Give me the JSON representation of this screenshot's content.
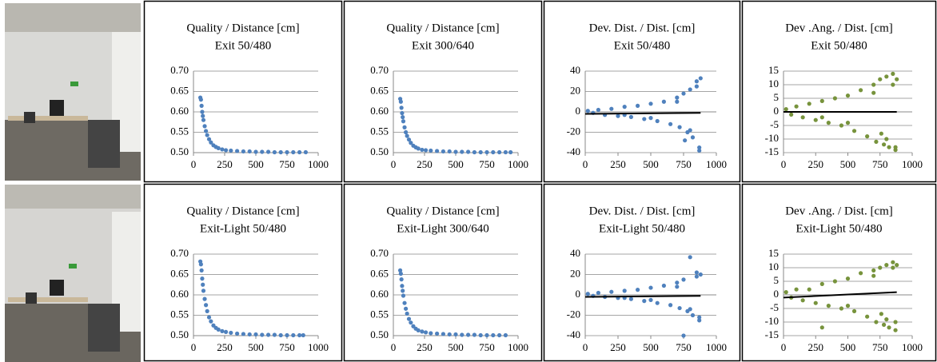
{
  "chart_data": [
    {
      "type": "scatter",
      "title": "Quality / Distance [cm]",
      "subtitle": "Exit 50/480",
      "xlim": [
        0,
        1000
      ],
      "xticks": [
        0,
        250,
        500,
        750,
        1000
      ],
      "ylim": [
        0.5,
        0.7
      ],
      "yticks": [
        {
          "value": 0.5,
          "label": "0.50"
        },
        0.55,
        {
          "value": 0.6,
          "label": "0.60"
        },
        0.65,
        {
          "value": 0.7,
          "label": "0.70"
        }
      ],
      "grid": true,
      "series": [
        {
          "color": "#4f81bd",
          "x": [
            55,
            60,
            65,
            70,
            75,
            80,
            90,
            100,
            110,
            125,
            140,
            160,
            180,
            200,
            230,
            260,
            300,
            350,
            400,
            450,
            500,
            550,
            600,
            650,
            700,
            750,
            800,
            850,
            900
          ],
          "values": [
            0.635,
            0.63,
            0.615,
            0.6,
            0.59,
            0.58,
            0.565,
            0.553,
            0.543,
            0.533,
            0.525,
            0.518,
            0.514,
            0.511,
            0.508,
            0.506,
            0.505,
            0.504,
            0.503,
            0.503,
            0.502,
            0.502,
            0.502,
            0.501,
            0.501,
            0.501,
            0.501,
            0.501,
            0.501
          ]
        }
      ]
    },
    {
      "type": "scatter",
      "title": "Quality / Distance [cm]",
      "subtitle": "Exit 300/640",
      "xlim": [
        0,
        1000
      ],
      "xticks": [
        0,
        250,
        500,
        750,
        1000
      ],
      "ylim": [
        0.5,
        0.7
      ],
      "yticks": [
        {
          "value": 0.5,
          "label": "0.50"
        },
        0.55,
        {
          "value": 0.6,
          "label": "0.60"
        },
        0.65,
        {
          "value": 0.7,
          "label": "0.70"
        }
      ],
      "grid": true,
      "series": [
        {
          "color": "#4f81bd",
          "x": [
            55,
            60,
            65,
            70,
            75,
            80,
            90,
            100,
            110,
            125,
            140,
            160,
            180,
            200,
            230,
            260,
            300,
            350,
            400,
            450,
            500,
            550,
            600,
            650,
            700,
            750,
            800,
            850,
            900,
            940
          ],
          "values": [
            0.632,
            0.625,
            0.61,
            0.597,
            0.587,
            0.577,
            0.562,
            0.55,
            0.541,
            0.532,
            0.524,
            0.517,
            0.513,
            0.51,
            0.507,
            0.506,
            0.505,
            0.504,
            0.503,
            0.503,
            0.502,
            0.502,
            0.502,
            0.501,
            0.501,
            0.501,
            0.501,
            0.501,
            0.501,
            0.501
          ]
        }
      ]
    },
    {
      "type": "scatter",
      "title": "Dev. Dist. / Dist. [cm]",
      "subtitle": "Exit 50/480",
      "xlim": [
        0,
        1000
      ],
      "xticks": [
        0,
        250,
        500,
        750,
        1000
      ],
      "ylim": [
        -40,
        40
      ],
      "yticks": [
        -40,
        -20,
        0,
        20,
        40
      ],
      "grid": true,
      "series": [
        {
          "color": "#4f81bd",
          "x": [
            20,
            60,
            100,
            150,
            200,
            250,
            300,
            350,
            400,
            450,
            500,
            550,
            600,
            650,
            700,
            720,
            750,
            780,
            800,
            820,
            850,
            870,
            880,
            300,
            500,
            700,
            800,
            850,
            870,
            760
          ],
          "values": [
            1,
            -1,
            2,
            -3,
            3,
            -4,
            5,
            -5,
            6,
            -7,
            8,
            -9,
            10,
            -12,
            14,
            -15,
            18,
            -20,
            22,
            -25,
            30,
            -35,
            33,
            -3,
            -6,
            10,
            -18,
            25,
            -38,
            -28
          ]
        },
        {
          "type": "line",
          "color": "#000000",
          "x": [
            0,
            880
          ],
          "values": [
            -2,
            -1
          ]
        }
      ]
    },
    {
      "type": "scatter",
      "title": "Dev .Ang. / Dist. [cm]",
      "subtitle": "Exit 50/480",
      "xlim": [
        0,
        1000
      ],
      "xticks": [
        0,
        250,
        500,
        750,
        1000
      ],
      "ylim": [
        -15,
        15
      ],
      "yticks": [
        -15,
        -10,
        -5,
        0,
        5,
        10,
        15
      ],
      "grid": true,
      "series": [
        {
          "color": "#77933c",
          "x": [
            20,
            60,
            100,
            150,
            200,
            250,
            300,
            350,
            400,
            450,
            500,
            550,
            600,
            650,
            700,
            720,
            750,
            780,
            800,
            820,
            850,
            870,
            880,
            300,
            500,
            700,
            800,
            850,
            870,
            760
          ],
          "values": [
            1,
            -1,
            2,
            -2,
            3,
            -3,
            4,
            -4,
            5,
            -5,
            6,
            -7,
            8,
            -9,
            10,
            -11,
            12,
            -12,
            13,
            -13,
            14,
            -14,
            12,
            -2,
            -4,
            7,
            -10,
            10,
            -13,
            -8
          ]
        },
        {
          "type": "line",
          "color": "#000000",
          "x": [
            0,
            880
          ],
          "values": [
            0,
            0
          ]
        }
      ]
    },
    {
      "type": "scatter",
      "title": "Quality / Distance [cm]",
      "subtitle": "Exit-Light 50/480",
      "xlim": [
        0,
        1000
      ],
      "xticks": [
        0,
        250,
        500,
        750,
        1000
      ],
      "ylim": [
        0.5,
        0.7
      ],
      "yticks": [
        {
          "value": 0.5,
          "label": "0.50"
        },
        0.55,
        {
          "value": 0.6,
          "label": "0.60"
        },
        0.65,
        {
          "value": 0.7,
          "label": "0.70"
        }
      ],
      "grid": true,
      "series": [
        {
          "color": "#4f81bd",
          "x": [
            55,
            60,
            65,
            70,
            75,
            80,
            90,
            100,
            110,
            125,
            140,
            160,
            180,
            200,
            230,
            260,
            300,
            350,
            400,
            450,
            500,
            550,
            600,
            650,
            700,
            750,
            800,
            850,
            880
          ],
          "values": [
            0.682,
            0.675,
            0.66,
            0.64,
            0.625,
            0.61,
            0.59,
            0.575,
            0.56,
            0.545,
            0.535,
            0.525,
            0.519,
            0.515,
            0.511,
            0.509,
            0.507,
            0.505,
            0.504,
            0.503,
            0.503,
            0.502,
            0.502,
            0.502,
            0.501,
            0.501,
            0.501,
            0.501,
            0.501
          ]
        }
      ]
    },
    {
      "type": "scatter",
      "title": "Quality / Distance [cm]",
      "subtitle": "Exit-Light 300/640",
      "xlim": [
        0,
        1000
      ],
      "xticks": [
        0,
        250,
        500,
        750,
        1000
      ],
      "ylim": [
        0.5,
        0.7
      ],
      "yticks": [
        {
          "value": 0.5,
          "label": "0.50"
        },
        0.55,
        {
          "value": 0.6,
          "label": "0.60"
        },
        0.65,
        {
          "value": 0.7,
          "label": "0.70"
        }
      ],
      "grid": true,
      "series": [
        {
          "color": "#4f81bd",
          "x": [
            55,
            60,
            65,
            70,
            75,
            80,
            90,
            100,
            110,
            125,
            140,
            160,
            180,
            200,
            230,
            260,
            300,
            350,
            400,
            450,
            500,
            550,
            600,
            650,
            700,
            750,
            800,
            850,
            900
          ],
          "values": [
            0.66,
            0.652,
            0.638,
            0.622,
            0.61,
            0.598,
            0.58,
            0.566,
            0.554,
            0.541,
            0.532,
            0.523,
            0.517,
            0.513,
            0.51,
            0.508,
            0.506,
            0.505,
            0.504,
            0.503,
            0.503,
            0.502,
            0.502,
            0.502,
            0.501,
            0.501,
            0.501,
            0.501,
            0.501
          ]
        }
      ]
    },
    {
      "type": "scatter",
      "title": "Dev. Dist. / Dist. [cm]",
      "subtitle": "Exit-Light 50/480",
      "xlim": [
        0,
        1000
      ],
      "xticks": [
        0,
        250,
        500,
        750,
        1000
      ],
      "ylim": [
        -40,
        40
      ],
      "yticks": [
        -40,
        -20,
        0,
        20,
        40
      ],
      "grid": true,
      "series": [
        {
          "color": "#4f81bd",
          "x": [
            20,
            60,
            100,
            150,
            200,
            250,
            300,
            350,
            400,
            450,
            500,
            550,
            600,
            650,
            700,
            720,
            750,
            780,
            800,
            820,
            850,
            870,
            880,
            300,
            500,
            700,
            800,
            850,
            870,
            750
          ],
          "values": [
            1,
            -1,
            2,
            -2,
            3,
            -3,
            4,
            -4,
            5,
            -6,
            7,
            -8,
            9,
            -10,
            12,
            -13,
            15,
            -16,
            37,
            -20,
            22,
            -25,
            20,
            -3,
            -5,
            8,
            -14,
            18,
            -22,
            -40
          ]
        },
        {
          "type": "line",
          "color": "#000000",
          "x": [
            0,
            880
          ],
          "values": [
            -2,
            -1
          ]
        }
      ]
    },
    {
      "type": "scatter",
      "title": "Dev .Ang. / Dist. [cm]",
      "subtitle": "Exit-Light 50/480",
      "xlim": [
        0,
        1000
      ],
      "xticks": [
        0,
        250,
        500,
        750,
        1000
      ],
      "ylim": [
        -15,
        15
      ],
      "yticks": [
        -15,
        -10,
        -5,
        0,
        5,
        10,
        15
      ],
      "grid": true,
      "series": [
        {
          "color": "#77933c",
          "x": [
            20,
            60,
            100,
            150,
            200,
            250,
            300,
            350,
            400,
            450,
            500,
            550,
            600,
            650,
            700,
            720,
            750,
            780,
            800,
            820,
            850,
            870,
            880,
            300,
            500,
            700,
            800,
            850,
            870,
            760
          ],
          "values": [
            1,
            -1,
            2,
            -2,
            2,
            -3,
            4,
            -4,
            5,
            -5,
            6,
            -6,
            8,
            -8,
            9,
            -10,
            10,
            -11,
            11,
            -12,
            12,
            -13,
            11,
            -12,
            -4,
            7,
            -9,
            10,
            -10,
            -7
          ]
        },
        {
          "type": "line",
          "color": "#000000",
          "x": [
            0,
            880
          ],
          "values": [
            -1,
            1
          ]
        }
      ]
    }
  ]
}
